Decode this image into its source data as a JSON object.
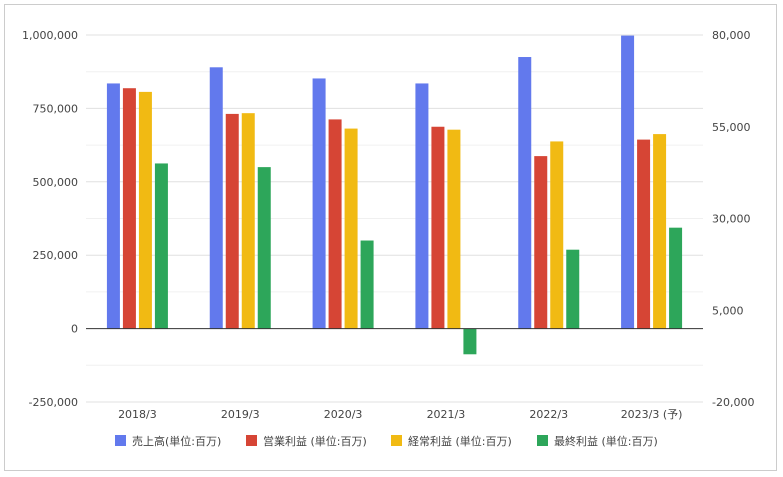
{
  "chart_data": {
    "type": "bar",
    "categories": [
      "2018/3",
      "2019/3",
      "2020/3",
      "2021/3",
      "2022/3",
      "2023/3 (予)"
    ],
    "series": [
      {
        "name": "売上高(単位:百万)",
        "axis": "left",
        "color": "#6279ED",
        "values": [
          835000,
          890000,
          852000,
          835000,
          925000,
          998000
        ]
      },
      {
        "name": "営業利益 (単位:百万)",
        "axis": "right",
        "color": "#D64535",
        "values": [
          65500,
          58500,
          57000,
          55000,
          47000,
          51500
        ]
      },
      {
        "name": "経常利益 (単位:百万)",
        "axis": "right",
        "color": "#F1BA13",
        "values": [
          64500,
          58700,
          54500,
          54200,
          51000,
          53000
        ]
      },
      {
        "name": "最終利益 (単位:百万)",
        "axis": "right",
        "color": "#2DA65A",
        "values": [
          45000,
          44000,
          24000,
          -7000,
          21500,
          27500
        ]
      }
    ],
    "y_left": {
      "ticks": [
        "1,000,000",
        "750,000",
        "500,000",
        "250,000",
        "0",
        "-250,000"
      ],
      "ylim": [
        -250000,
        1000000
      ]
    },
    "y_right": {
      "ticks": [
        "80,000",
        "55,000",
        "30,000",
        "5,000",
        "-20,000"
      ],
      "ylim": [
        -20000,
        80000
      ]
    },
    "legend": "bottom",
    "grid": true
  }
}
